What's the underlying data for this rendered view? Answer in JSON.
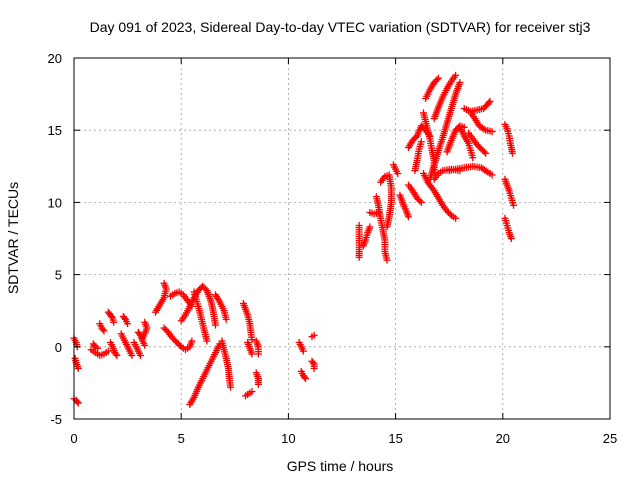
{
  "chart_data": {
    "type": "scatter",
    "title": "Day 091 of 2023, Sidereal Day-to-day VTEC variation (SDTVAR) for receiver stj3",
    "xlabel": "GPS time / hours",
    "ylabel": "SDTVAR / TECUs",
    "xlim": [
      0,
      25
    ],
    "ylim": [
      -5,
      20
    ],
    "xticks": [
      "0",
      "5",
      "10",
      "15",
      "20",
      "25"
    ],
    "yticks": [
      "-5",
      "0",
      "5",
      "10",
      "15",
      "20"
    ],
    "grid": true,
    "marker": "plus",
    "color": "#ff0000",
    "tracks": [
      {
        "points": [
          [
            0.0,
            0.6
          ],
          [
            0.1,
            0.3
          ],
          [
            0.15,
            0.0
          ]
        ]
      },
      {
        "points": [
          [
            0.05,
            -0.8
          ],
          [
            0.1,
            -1.1
          ],
          [
            0.2,
            -1.5
          ]
        ]
      },
      {
        "points": [
          [
            0.0,
            -3.6
          ],
          [
            0.1,
            -3.7
          ],
          [
            0.2,
            -3.9
          ]
        ]
      },
      {
        "points": [
          [
            0.8,
            -0.2
          ],
          [
            1.0,
            -0.4
          ],
          [
            1.2,
            -0.6
          ],
          [
            1.4,
            -0.5
          ],
          [
            1.6,
            -0.3
          ]
        ]
      },
      {
        "points": [
          [
            0.9,
            0.2
          ],
          [
            1.0,
            0.0
          ],
          [
            1.1,
            -0.1
          ]
        ]
      },
      {
        "points": [
          [
            1.2,
            1.6
          ],
          [
            1.3,
            1.3
          ],
          [
            1.4,
            1.1
          ]
        ]
      },
      {
        "points": [
          [
            1.6,
            2.4
          ],
          [
            1.7,
            2.2
          ],
          [
            1.8,
            2.0
          ],
          [
            1.85,
            1.7
          ]
        ]
      },
      {
        "points": [
          [
            1.7,
            0.3
          ],
          [
            1.8,
            0.0
          ],
          [
            1.9,
            -0.4
          ],
          [
            2.0,
            -0.6
          ]
        ]
      },
      {
        "points": [
          [
            2.2,
            0.9
          ],
          [
            2.3,
            0.6
          ],
          [
            2.4,
            0.3
          ],
          [
            2.5,
            0.0
          ],
          [
            2.6,
            -0.3
          ],
          [
            2.7,
            -0.6
          ]
        ]
      },
      {
        "points": [
          [
            2.3,
            2.1
          ],
          [
            2.4,
            1.9
          ],
          [
            2.5,
            1.6
          ]
        ]
      },
      {
        "points": [
          [
            2.8,
            0.3
          ],
          [
            2.9,
            0.0
          ],
          [
            3.0,
            -0.3
          ],
          [
            3.1,
            -0.6
          ]
        ]
      },
      {
        "points": [
          [
            3.0,
            1.0
          ],
          [
            3.1,
            0.8
          ],
          [
            3.2,
            0.4
          ],
          [
            3.3,
            0.1
          ]
        ]
      },
      {
        "points": [
          [
            3.3,
            1.7
          ],
          [
            3.4,
            1.3
          ],
          [
            3.3,
            0.9
          ],
          [
            3.2,
            0.6
          ]
        ]
      },
      {
        "points": [
          [
            3.8,
            2.4
          ],
          [
            4.0,
            2.9
          ],
          [
            4.2,
            3.4
          ],
          [
            4.3,
            4.0
          ],
          [
            4.2,
            4.4
          ]
        ]
      },
      {
        "points": [
          [
            4.2,
            1.3
          ],
          [
            4.4,
            1.0
          ],
          [
            4.6,
            0.6
          ],
          [
            4.8,
            0.3
          ],
          [
            5.0,
            0.0
          ],
          [
            5.2,
            -0.2
          ],
          [
            5.4,
            0.0
          ],
          [
            5.5,
            0.4
          ]
        ]
      },
      {
        "points": [
          [
            4.5,
            3.5
          ],
          [
            4.7,
            3.7
          ],
          [
            4.9,
            3.8
          ],
          [
            5.1,
            3.6
          ],
          [
            5.3,
            3.2
          ],
          [
            5.5,
            2.8
          ]
        ]
      },
      {
        "points": [
          [
            5.0,
            1.8
          ],
          [
            5.2,
            2.2
          ],
          [
            5.4,
            2.8
          ],
          [
            5.6,
            3.4
          ],
          [
            5.8,
            3.9
          ],
          [
            6.0,
            4.2
          ],
          [
            6.2,
            3.9
          ],
          [
            6.4,
            3.1
          ],
          [
            6.5,
            2.4
          ],
          [
            6.6,
            1.5
          ]
        ]
      },
      {
        "points": [
          [
            5.6,
            3.8
          ],
          [
            5.7,
            3.3
          ],
          [
            5.8,
            2.8
          ],
          [
            5.9,
            2.2
          ],
          [
            6.0,
            1.6
          ],
          [
            6.1,
            1.0
          ],
          [
            6.2,
            0.4
          ]
        ]
      },
      {
        "points": [
          [
            5.4,
            -4.0
          ],
          [
            5.6,
            -3.5
          ],
          [
            5.8,
            -2.8
          ],
          [
            6.0,
            -2.2
          ],
          [
            6.2,
            -1.6
          ],
          [
            6.4,
            -1.0
          ],
          [
            6.6,
            -0.4
          ],
          [
            6.8,
            0.2
          ]
        ]
      },
      {
        "points": [
          [
            6.6,
            3.6
          ],
          [
            6.8,
            3.1
          ],
          [
            7.0,
            2.5
          ],
          [
            7.1,
            1.9
          ]
        ]
      },
      {
        "points": [
          [
            6.9,
            0.4
          ],
          [
            7.0,
            -0.2
          ],
          [
            7.1,
            -0.8
          ],
          [
            7.2,
            -1.5
          ],
          [
            7.25,
            -2.2
          ],
          [
            7.3,
            -2.8
          ]
        ]
      },
      {
        "points": [
          [
            7.9,
            3.0
          ],
          [
            8.0,
            2.6
          ],
          [
            8.1,
            2.2
          ],
          [
            8.2,
            1.6
          ],
          [
            8.25,
            1.0
          ],
          [
            8.3,
            0.5
          ]
        ]
      },
      {
        "points": [
          [
            8.1,
            0.3
          ],
          [
            8.2,
            -0.1
          ],
          [
            8.3,
            -0.5
          ]
        ]
      },
      {
        "points": [
          [
            8.0,
            -3.4
          ],
          [
            8.2,
            -3.2
          ],
          [
            8.3,
            -3.1
          ]
        ]
      },
      {
        "points": [
          [
            8.5,
            0.4
          ],
          [
            8.6,
            0.0
          ],
          [
            8.6,
            -0.5
          ]
        ]
      },
      {
        "points": [
          [
            8.5,
            -1.8
          ],
          [
            8.6,
            -2.2
          ],
          [
            8.6,
            -2.6
          ]
        ]
      },
      {
        "points": [
          [
            10.5,
            0.3
          ],
          [
            10.6,
            0.0
          ],
          [
            10.7,
            -0.3
          ]
        ]
      },
      {
        "points": [
          [
            10.6,
            -1.7
          ],
          [
            10.7,
            -2.0
          ],
          [
            10.8,
            -2.2
          ]
        ]
      },
      {
        "points": [
          [
            11.1,
            0.7
          ],
          [
            11.2,
            0.8
          ]
        ]
      },
      {
        "points": [
          [
            11.1,
            -1.0
          ],
          [
            11.2,
            -1.2
          ],
          [
            11.2,
            -1.5
          ]
        ]
      },
      {
        "points": [
          [
            13.3,
            6.2
          ],
          [
            13.3,
            6.6
          ],
          [
            13.3,
            8.4
          ]
        ]
      },
      {
        "points": [
          [
            13.5,
            7.0
          ],
          [
            13.6,
            7.4
          ],
          [
            13.7,
            7.9
          ],
          [
            13.8,
            8.3
          ]
        ]
      },
      {
        "points": [
          [
            13.8,
            9.3
          ],
          [
            14.0,
            9.2
          ],
          [
            14.2,
            9.3
          ]
        ]
      },
      {
        "points": [
          [
            14.1,
            10.4
          ],
          [
            14.2,
            9.8
          ],
          [
            14.3,
            8.9
          ],
          [
            14.4,
            8.1
          ],
          [
            14.5,
            7.4
          ],
          [
            14.5,
            6.6
          ],
          [
            14.6,
            6.0
          ]
        ]
      },
      {
        "points": [
          [
            14.3,
            11.4
          ],
          [
            14.5,
            11.8
          ],
          [
            14.7,
            11.9
          ],
          [
            14.8,
            11.0
          ],
          [
            14.8,
            10.0
          ],
          [
            14.7,
            9.0
          ],
          [
            14.6,
            8.3
          ]
        ]
      },
      {
        "points": [
          [
            14.9,
            12.6
          ],
          [
            15.0,
            12.3
          ],
          [
            15.1,
            12.0
          ]
        ]
      },
      {
        "points": [
          [
            15.2,
            10.5
          ],
          [
            15.3,
            10.1
          ],
          [
            15.4,
            9.7
          ],
          [
            15.5,
            9.4
          ],
          [
            15.6,
            9.0
          ]
        ]
      },
      {
        "points": [
          [
            15.6,
            11.2
          ],
          [
            15.8,
            10.8
          ],
          [
            16.0,
            10.3
          ],
          [
            16.2,
            10.0
          ]
        ]
      },
      {
        "points": [
          [
            15.6,
            13.8
          ],
          [
            15.8,
            14.3
          ],
          [
            16.0,
            14.6
          ],
          [
            16.2,
            15.3
          ],
          [
            16.4,
            15.0
          ],
          [
            16.6,
            14.6
          ]
        ]
      },
      {
        "points": [
          [
            15.9,
            12.2
          ],
          [
            16.0,
            12.9
          ],
          [
            16.1,
            13.7
          ],
          [
            16.2,
            14.2
          ]
        ]
      },
      {
        "points": [
          [
            16.3,
            16.2
          ],
          [
            16.4,
            15.6
          ],
          [
            16.5,
            15.0
          ],
          [
            16.6,
            14.4
          ],
          [
            16.7,
            13.6
          ],
          [
            16.8,
            12.9
          ],
          [
            16.8,
            12.1
          ]
        ]
      },
      {
        "points": [
          [
            16.3,
            12.0
          ],
          [
            16.5,
            11.4
          ],
          [
            16.8,
            10.8
          ],
          [
            17.0,
            10.3
          ],
          [
            17.2,
            9.8
          ],
          [
            17.4,
            9.4
          ],
          [
            17.6,
            9.1
          ],
          [
            17.8,
            8.9
          ]
        ]
      },
      {
        "points": [
          [
            16.8,
            15.8
          ],
          [
            17.0,
            16.6
          ],
          [
            17.2,
            17.3
          ],
          [
            17.4,
            17.9
          ],
          [
            17.6,
            18.4
          ],
          [
            17.8,
            18.8
          ]
        ]
      },
      {
        "points": [
          [
            16.4,
            17.2
          ],
          [
            16.6,
            17.8
          ],
          [
            16.8,
            18.3
          ],
          [
            17.0,
            18.6
          ]
        ]
      },
      {
        "points": [
          [
            16.6,
            11.6
          ],
          [
            16.8,
            12.6
          ],
          [
            17.0,
            13.6
          ],
          [
            17.2,
            14.5
          ],
          [
            17.4,
            15.5
          ],
          [
            17.6,
            16.5
          ],
          [
            17.8,
            17.5
          ],
          [
            18.0,
            18.3
          ]
        ]
      },
      {
        "points": [
          [
            16.8,
            11.6
          ],
          [
            17.0,
            12.0
          ],
          [
            17.2,
            12.2
          ],
          [
            17.6,
            12.3
          ],
          [
            18.0,
            12.2
          ]
        ]
      },
      {
        "points": [
          [
            17.4,
            13.5
          ],
          [
            17.6,
            14.3
          ],
          [
            17.8,
            15.0
          ],
          [
            18.0,
            15.3
          ],
          [
            18.2,
            15.2
          ]
        ]
      },
      {
        "points": [
          [
            17.5,
            12.2
          ],
          [
            17.8,
            12.3
          ],
          [
            18.2,
            12.4
          ],
          [
            18.6,
            12.5
          ],
          [
            19.0,
            12.4
          ],
          [
            19.3,
            12.1
          ],
          [
            19.5,
            11.9
          ]
        ]
      },
      {
        "points": [
          [
            18.0,
            15.2
          ],
          [
            18.2,
            14.6
          ],
          [
            18.4,
            14.1
          ],
          [
            18.5,
            13.6
          ],
          [
            18.6,
            13.1
          ]
        ]
      },
      {
        "points": [
          [
            18.2,
            16.5
          ],
          [
            18.5,
            16.3
          ],
          [
            18.8,
            16.4
          ],
          [
            19.1,
            16.5
          ],
          [
            19.3,
            16.8
          ],
          [
            19.4,
            17.0
          ]
        ]
      },
      {
        "points": [
          [
            18.5,
            16.2
          ],
          [
            18.7,
            15.8
          ],
          [
            18.9,
            15.3
          ],
          [
            19.2,
            15.0
          ],
          [
            19.5,
            14.9
          ]
        ]
      },
      {
        "points": [
          [
            18.4,
            14.8
          ],
          [
            18.6,
            14.4
          ],
          [
            18.8,
            14.0
          ],
          [
            19.0,
            13.7
          ],
          [
            19.2,
            13.4
          ]
        ]
      },
      {
        "points": [
          [
            20.1,
            15.4
          ],
          [
            20.2,
            15.1
          ],
          [
            20.3,
            14.6
          ],
          [
            20.35,
            14.1
          ],
          [
            20.4,
            13.8
          ],
          [
            20.45,
            13.4
          ]
        ]
      },
      {
        "points": [
          [
            20.1,
            11.6
          ],
          [
            20.2,
            11.2
          ],
          [
            20.3,
            10.8
          ],
          [
            20.4,
            10.3
          ],
          [
            20.5,
            9.8
          ]
        ]
      },
      {
        "points": [
          [
            20.1,
            8.9
          ],
          [
            20.2,
            8.4
          ],
          [
            20.3,
            7.9
          ],
          [
            20.4,
            7.5
          ]
        ]
      }
    ]
  }
}
